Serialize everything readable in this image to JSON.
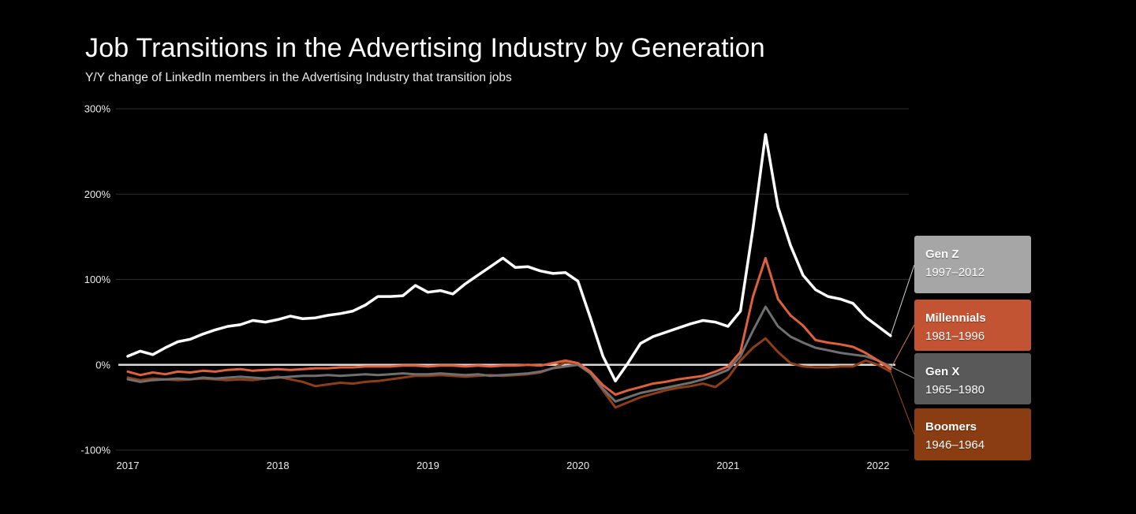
{
  "header": {
    "title": "Job Transitions in the Advertising Industry by Generation",
    "subtitle": "Y/Y change of LinkedIn members in the Advertising Industry that transition jobs"
  },
  "colors": {
    "background": "#000000",
    "title_text": "#ffffff",
    "subtitle_text": "#ebebeb",
    "tick_label": "#ececec",
    "gridline": "#2d2d2d",
    "zero_axis": "#d9d9d9"
  },
  "legend": {
    "items": [
      {
        "label": "Gen Z",
        "years": "1997–2012",
        "bg": "#a6a6a6",
        "leader_color": "#cfcfcf"
      },
      {
        "label": "Millennials",
        "years": "1981–1996",
        "bg": "#c25434",
        "leader_color": "#cf7a55"
      },
      {
        "label": "Gen X",
        "years": "1965–1980",
        "bg": "#595959",
        "leader_color": "#9a9a9a"
      },
      {
        "label": "Boomers",
        "years": "1946–1964",
        "bg": "#8a3d12",
        "leader_color": "#a14f28"
      }
    ]
  },
  "chart_data": {
    "type": "line",
    "title": "Job Transitions in the Advertising Industry by Generation",
    "subtitle": "Y/Y change of LinkedIn members in the Advertising Industry that transition jobs",
    "x_unit": "month",
    "x_start": "2017-01",
    "x_end": "2022-02",
    "x_tick_labels": [
      "2017",
      "2018",
      "2019",
      "2020",
      "2021",
      "2022"
    ],
    "y_ticks": [
      300,
      200,
      100,
      0,
      -100
    ],
    "y_tick_labels": [
      "300%",
      "200%",
      "100%",
      "0%",
      "-100%"
    ],
    "ylim": [
      -100,
      300
    ],
    "grid": true,
    "legend_position": "right",
    "series": [
      {
        "name": "Gen Z",
        "color": "#ffffff",
        "values": [
          10,
          16,
          12,
          20,
          27,
          30,
          36,
          41,
          45,
          47,
          52,
          50,
          53,
          57,
          54,
          55,
          58,
          60,
          63,
          70,
          80,
          80,
          81,
          93,
          85,
          87,
          83,
          95,
          105,
          115,
          125,
          114,
          115,
          110,
          107,
          108,
          98,
          55,
          10,
          -19,
          2,
          25,
          33,
          38,
          43,
          48,
          52,
          50,
          45,
          63,
          160,
          270,
          185,
          140,
          105,
          88,
          80,
          77,
          72,
          56,
          45,
          34
        ]
      },
      {
        "name": "Millennials",
        "color": "#df603c",
        "values": [
          -8,
          -12,
          -9,
          -11,
          -8,
          -9,
          -7,
          -8,
          -6,
          -5,
          -7,
          -6,
          -5,
          -6,
          -5,
          -4,
          -4,
          -3,
          -3,
          -2,
          -2,
          -2,
          -1,
          -1,
          -2,
          -1,
          -1,
          -2,
          -1,
          -2,
          -1,
          -1,
          0,
          -1,
          2,
          5,
          2,
          -8,
          -24,
          -35,
          -30,
          -26,
          -22,
          -20,
          -17,
          -15,
          -13,
          -8,
          -2,
          15,
          80,
          125,
          77,
          58,
          46,
          29,
          26,
          24,
          21,
          14,
          5,
          -5
        ]
      },
      {
        "name": "Gen X",
        "color": "#6f6f6f",
        "values": [
          -17,
          -20,
          -18,
          -17,
          -16,
          -17,
          -15,
          -16,
          -15,
          -14,
          -15,
          -16,
          -15,
          -14,
          -13,
          -13,
          -12,
          -13,
          -12,
          -11,
          -12,
          -11,
          -10,
          -11,
          -11,
          -10,
          -11,
          -12,
          -11,
          -13,
          -12,
          -11,
          -10,
          -8,
          -4,
          -2,
          0,
          -10,
          -28,
          -43,
          -38,
          -33,
          -30,
          -27,
          -24,
          -21,
          -17,
          -12,
          -6,
          10,
          40,
          68,
          45,
          33,
          26,
          20,
          17,
          14,
          12,
          10,
          5,
          -2
        ]
      },
      {
        "name": "Boomers",
        "color": "#8c3e16",
        "values": [
          -15,
          -18,
          -16,
          -17,
          -18,
          -17,
          -16,
          -17,
          -18,
          -17,
          -18,
          -16,
          -14,
          -17,
          -20,
          -25,
          -23,
          -21,
          -22,
          -20,
          -19,
          -17,
          -15,
          -13,
          -13,
          -12,
          -13,
          -14,
          -13,
          -12,
          -13,
          -12,
          -11,
          -9,
          -4,
          3,
          1,
          -10,
          -30,
          -50,
          -44,
          -38,
          -34,
          -30,
          -27,
          -25,
          -22,
          -26,
          -15,
          5,
          20,
          31,
          15,
          2,
          -2,
          -3,
          -3,
          -2,
          -2,
          5,
          0,
          -8
        ]
      }
    ]
  }
}
